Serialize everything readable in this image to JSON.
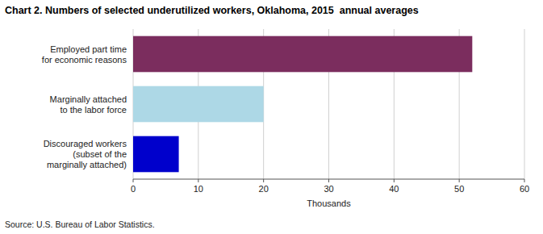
{
  "chart_data": {
    "type": "bar",
    "orientation": "horizontal",
    "title": "Chart 2. Numbers of selected underutilized workers, Oklahoma, 2015  annual averages",
    "categories": [
      "Discouraged workers\n(subset of the\nmarginally attached)",
      "Marginally attached\nto the labor force",
      "Employed part time\nfor economic reasons"
    ],
    "values": [
      7,
      20,
      52
    ],
    "colors": [
      "#0000cc",
      "#add8e6",
      "#7b2d5e"
    ],
    "xlim": [
      0,
      60
    ],
    "xticks": [
      0,
      10,
      20,
      30,
      40,
      50,
      60
    ],
    "xlabel": "Thousands",
    "source": "Source: U.S. Bureau of Labor Statistics.",
    "grid": true
  }
}
